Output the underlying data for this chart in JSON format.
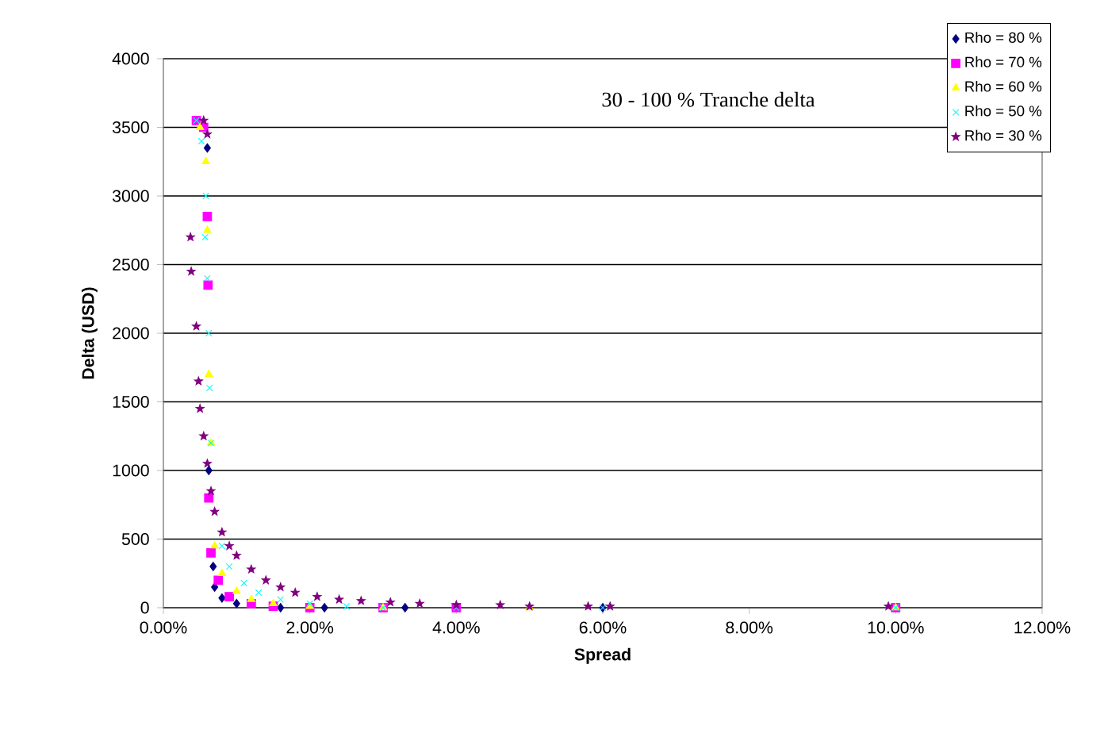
{
  "chart_data": {
    "type": "scatter",
    "title": "30 - 100 % Tranche delta",
    "xlabel": "Spread",
    "ylabel": "Delta (USD)",
    "xlim": [
      0,
      0.12
    ],
    "ylim": [
      0,
      4000
    ],
    "xticks": [
      {
        "value": 0,
        "label": "0.00%"
      },
      {
        "value": 0.02,
        "label": "2.00%"
      },
      {
        "value": 0.04,
        "label": "4.00%"
      },
      {
        "value": 0.06,
        "label": "6.00%"
      },
      {
        "value": 0.08,
        "label": "8.00%"
      },
      {
        "value": 0.1,
        "label": "10.00%"
      },
      {
        "value": 0.12,
        "label": "12.00%"
      }
    ],
    "yticks": [
      0,
      500,
      1000,
      1500,
      2000,
      2500,
      3000,
      3500,
      4000
    ],
    "grid": "y",
    "legend": "top right",
    "series": [
      {
        "name": "Rho = 80 %",
        "color": "#000080",
        "marker": "diamond",
        "x": [
          0.006,
          0.0062,
          0.0068,
          0.007,
          0.008,
          0.01,
          0.016,
          0.022,
          0.033,
          0.06
        ],
        "values": [
          3350,
          1000,
          300,
          150,
          70,
          30,
          0,
          0,
          0,
          0
        ]
      },
      {
        "name": "Rho = 70 %",
        "color": "#ff00ff",
        "marker": "square",
        "x": [
          0.0045,
          0.0055,
          0.006,
          0.0061,
          0.0062,
          0.0065,
          0.0075,
          0.009,
          0.012,
          0.015,
          0.02,
          0.03,
          0.04,
          0.1
        ],
        "values": [
          3550,
          3500,
          2850,
          2350,
          800,
          400,
          200,
          80,
          30,
          10,
          0,
          0,
          0,
          0
        ]
      },
      {
        "name": "Rho = 60 %",
        "color": "#ffff00",
        "marker": "triangle",
        "x": [
          0.005,
          0.0058,
          0.006,
          0.0062,
          0.0065,
          0.007,
          0.008,
          0.01,
          0.012,
          0.015,
          0.02,
          0.03,
          0.05,
          0.1
        ],
        "values": [
          3500,
          3250,
          2750,
          1700,
          1200,
          450,
          250,
          120,
          60,
          30,
          10,
          0,
          0,
          0
        ]
      },
      {
        "name": "Rho = 50 %",
        "color": "#00ffff",
        "marker": "cross",
        "x": [
          0.0045,
          0.0052,
          0.0058,
          0.0057,
          0.006,
          0.0062,
          0.0063,
          0.0065,
          0.008,
          0.009,
          0.011,
          0.013,
          0.016,
          0.02,
          0.025,
          0.03,
          0.04,
          0.06,
          0.1
        ],
        "values": [
          3550,
          3400,
          3000,
          2700,
          2400,
          2000,
          1600,
          1200,
          450,
          300,
          180,
          110,
          60,
          30,
          10,
          0,
          0,
          0,
          0
        ]
      },
      {
        "name": "Rho = 30 %",
        "color": "#800080",
        "marker": "star",
        "x": [
          0.0055,
          0.006,
          0.0037,
          0.0038,
          0.0045,
          0.0048,
          0.005,
          0.0055,
          0.006,
          0.0065,
          0.007,
          0.008,
          0.009,
          0.01,
          0.012,
          0.014,
          0.016,
          0.018,
          0.021,
          0.024,
          0.027,
          0.031,
          0.035,
          0.04,
          0.046,
          0.05,
          0.058,
          0.061,
          0.099
        ],
        "values": [
          3550,
          3450,
          2700,
          2450,
          2050,
          1650,
          1450,
          1250,
          1050,
          850,
          700,
          550,
          450,
          380,
          280,
          200,
          150,
          110,
          80,
          60,
          50,
          40,
          30,
          20,
          20,
          10,
          10,
          10,
          10
        ]
      }
    ]
  }
}
